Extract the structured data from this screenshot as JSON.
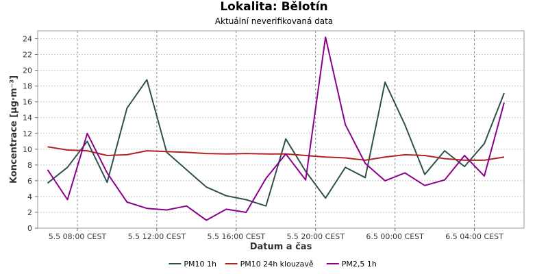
{
  "chart_data": {
    "type": "line",
    "title": "Lokalita: Bělotín",
    "subtitle": "Aktuální neverifikovaná data",
    "xlabel": "Datum a čas",
    "ylabel": "Koncentrace [µg·m⁻³]",
    "ylim": [
      0,
      25
    ],
    "yticks": [
      0,
      2,
      4,
      6,
      8,
      10,
      12,
      14,
      16,
      18,
      20,
      22,
      24
    ],
    "xlim": [
      "5.5 06:00 CEST",
      "6.5 06:30 CEST"
    ],
    "xtick_labels": [
      "5.5 08:00 CEST",
      "5.5 12:00 CEST",
      "5.5 16:00 CEST",
      "5.5 20:00 CEST",
      "6.5 00:00 CEST",
      "6.5 04:00 CEST"
    ],
    "x": [
      "5.5 06:30",
      "5.5 07:30",
      "5.5 08:30",
      "5.5 09:30",
      "5.5 10:30",
      "5.5 11:30",
      "5.5 12:30",
      "5.5 13:30",
      "5.5 14:30",
      "5.5 15:30",
      "5.5 16:30",
      "5.5 17:30",
      "5.5 18:30",
      "5.5 19:30",
      "5.5 20:30",
      "5.5 21:30",
      "5.5 22:30",
      "5.5 23:30",
      "6.5 00:30",
      "6.5 01:30",
      "6.5 02:30",
      "6.5 03:30",
      "6.5 04:30",
      "6.5 05:30"
    ],
    "grid": true,
    "legend_position": "bottom",
    "series": [
      {
        "name": "PM10 1h",
        "color": "#2f4f4f",
        "values": [
          5.7,
          7.7,
          11.0,
          5.8,
          15.2,
          18.8,
          9.6,
          7.4,
          5.2,
          4.1,
          3.6,
          2.8,
          11.3,
          7.2,
          3.8,
          7.7,
          6.4,
          18.5,
          13.1,
          6.8,
          9.8,
          7.8,
          10.7,
          17.1
        ]
      },
      {
        "name": "PM10 24h klouzavě",
        "color": "#b22222",
        "values": [
          10.3,
          9.9,
          9.8,
          9.2,
          9.3,
          9.8,
          9.7,
          9.6,
          9.45,
          9.4,
          9.45,
          9.4,
          9.4,
          9.2,
          9.0,
          8.9,
          8.6,
          9.0,
          9.3,
          9.2,
          8.8,
          8.6,
          8.6,
          9.0
        ]
      },
      {
        "name": "PM2,5 1h",
        "color": "#8b008b",
        "values": [
          7.4,
          3.6,
          12.0,
          7.0,
          3.3,
          2.5,
          2.3,
          2.8,
          1.0,
          2.4,
          2.0,
          6.3,
          9.4,
          6.1,
          24.2,
          13.1,
          8.2,
          6.0,
          7.0,
          5.4,
          6.1,
          9.2,
          6.6,
          15.9
        ]
      }
    ]
  }
}
